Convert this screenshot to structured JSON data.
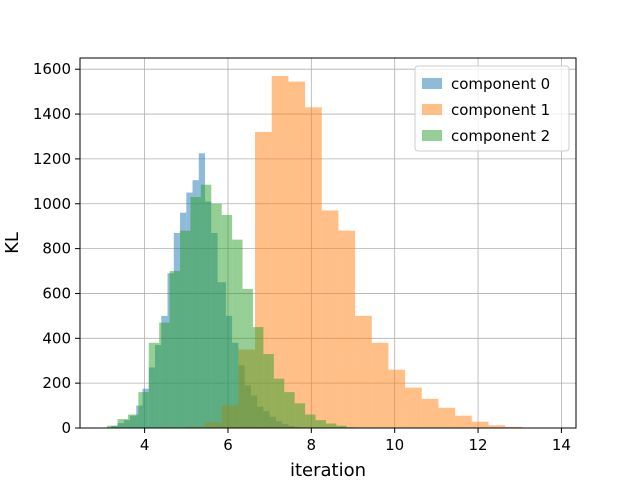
{
  "chart_data": {
    "type": "histogram",
    "title": "",
    "xlabel": "iteration",
    "ylabel": "KL",
    "xlim": [
      2.45,
      14.35
    ],
    "ylim": [
      0,
      1650
    ],
    "xticks": [
      4,
      6,
      8,
      10,
      12,
      14
    ],
    "yticks": [
      0,
      200,
      400,
      600,
      800,
      1000,
      1200,
      1400,
      1600
    ],
    "grid": true,
    "legend_position": "top-right",
    "series": [
      {
        "name": "component 0",
        "color": "#1f77b4",
        "alpha": 0.5,
        "bin_edges": [
          2.9,
          3.2,
          3.35,
          3.5,
          3.65,
          3.8,
          3.95,
          4.1,
          4.25,
          4.4,
          4.55,
          4.7,
          4.85,
          5.0,
          5.15,
          5.3,
          5.45,
          5.6,
          5.75,
          5.95,
          6.1,
          6.25,
          6.4,
          6.55,
          6.7,
          6.85,
          7.0,
          7.15,
          7.3,
          7.45,
          7.6,
          7.75,
          7.9,
          8.05
        ],
        "counts": [
          2,
          10,
          22,
          35,
          55,
          100,
          175,
          270,
          370,
          500,
          690,
          870,
          960,
          1050,
          1105,
          1225,
          1010,
          870,
          650,
          500,
          380,
          280,
          190,
          145,
          95,
          75,
          50,
          30,
          18,
          10,
          5,
          2,
          1
        ]
      },
      {
        "name": "component 1",
        "color": "#ff7f0e",
        "alpha": 0.5,
        "bin_edges": [
          5.05,
          5.45,
          5.85,
          6.25,
          6.65,
          7.05,
          7.45,
          7.85,
          8.25,
          8.65,
          9.05,
          9.45,
          9.85,
          10.25,
          10.65,
          11.05,
          11.45,
          11.85,
          12.25,
          12.65,
          13.05,
          13.45,
          13.85
        ],
        "counts": [
          5,
          25,
          100,
          350,
          1320,
          1570,
          1545,
          1430,
          970,
          880,
          500,
          380,
          260,
          180,
          130,
          90,
          55,
          28,
          12,
          5,
          2,
          1
        ]
      },
      {
        "name": "component 2",
        "color": "#2ca02c",
        "alpha": 0.5,
        "bin_edges": [
          3.1,
          3.35,
          3.6,
          3.85,
          4.1,
          4.35,
          4.6,
          4.85,
          5.1,
          5.35,
          5.6,
          5.85,
          6.1,
          6.35,
          6.6,
          6.85,
          7.1,
          7.35,
          7.6,
          7.85,
          8.1,
          8.35,
          8.6,
          8.85,
          9.1
        ],
        "counts": [
          10,
          40,
          60,
          160,
          380,
          470,
          700,
          880,
          1030,
          1085,
          1000,
          950,
          840,
          620,
          450,
          330,
          220,
          160,
          110,
          60,
          35,
          20,
          10,
          3
        ]
      }
    ]
  }
}
